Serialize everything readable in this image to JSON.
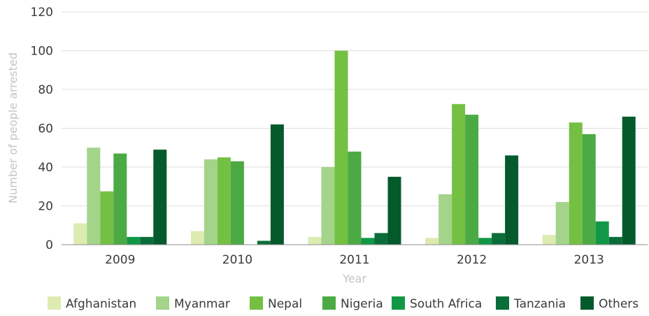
{
  "chart_data": {
    "type": "bar",
    "xlabel": "Year",
    "ylabel": "Number of people arrested",
    "ylim": [
      0,
      120
    ],
    "yticks": [
      0,
      20,
      40,
      60,
      80,
      100,
      120
    ],
    "grid": "horizontal",
    "legend_position": "bottom",
    "categories": [
      "2009",
      "2010",
      "2011",
      "2012",
      "2013"
    ],
    "series": [
      {
        "name": "Afghanistan",
        "color": "#dcebb0",
        "values": [
          11,
          7,
          4,
          3.5,
          5
        ]
      },
      {
        "name": "Myanmar",
        "color": "#a3d48a",
        "values": [
          50,
          44,
          40,
          26,
          22
        ]
      },
      {
        "name": "Nepal",
        "color": "#74c043",
        "values": [
          27.5,
          45,
          100,
          72.5,
          63
        ]
      },
      {
        "name": "Nigeria",
        "color": "#4caa44",
        "values": [
          47,
          43,
          48,
          67,
          57
        ]
      },
      {
        "name": "South Africa",
        "color": "#119847",
        "values": [
          4,
          0,
          3.5,
          3.5,
          12
        ]
      },
      {
        "name": "Tanzania",
        "color": "#0b6e3a",
        "values": [
          4,
          2,
          6,
          6,
          4
        ]
      },
      {
        "name": "Others",
        "color": "#055a2c",
        "values": [
          49,
          62,
          35,
          46,
          66
        ]
      }
    ]
  }
}
